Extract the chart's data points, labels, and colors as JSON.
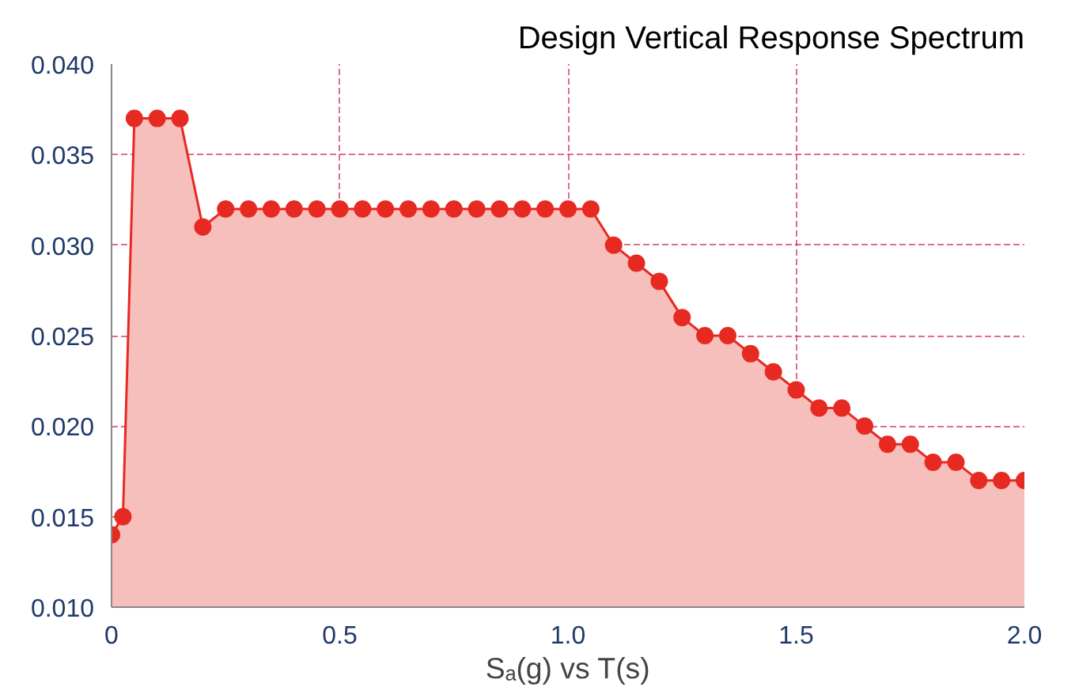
{
  "chart_data": {
    "type": "area",
    "title": "Design Vertical Response Spectrum",
    "xlabel": "Sₐ(g) vs T(s)",
    "x": [
      0,
      0.025,
      0.05,
      0.1,
      0.15,
      0.2,
      0.25,
      0.3,
      0.35,
      0.4,
      0.45,
      0.5,
      0.55,
      0.6,
      0.65,
      0.7,
      0.75,
      0.8,
      0.85,
      0.9,
      0.95,
      1.0,
      1.05,
      1.1,
      1.15,
      1.2,
      1.25,
      1.3,
      1.35,
      1.4,
      1.45,
      1.5,
      1.55,
      1.6,
      1.65,
      1.7,
      1.75,
      1.8,
      1.85,
      1.9,
      1.95,
      2.0
    ],
    "series": [
      {
        "color": "#e62a22",
        "values": [
          0.014,
          0.015,
          0.037,
          0.037,
          0.037,
          0.031,
          0.032,
          0.032,
          0.032,
          0.032,
          0.032,
          0.032,
          0.032,
          0.032,
          0.032,
          0.032,
          0.032,
          0.032,
          0.032,
          0.032,
          0.032,
          0.032,
          0.032,
          0.03,
          0.029,
          0.028,
          0.026,
          0.025,
          0.025,
          0.024,
          0.023,
          0.022,
          0.021,
          0.021,
          0.02,
          0.019,
          0.019,
          0.018,
          0.018,
          0.017,
          0.017,
          0.017
        ]
      }
    ],
    "xlim": [
      0,
      2.0
    ],
    "ylim": [
      0.01,
      0.04
    ],
    "xticks": [
      0,
      0.5,
      {
        "value": 1.0,
        "label": "1.0"
      },
      1.5,
      {
        "value": 2.0,
        "label": "2.0"
      }
    ],
    "yticks": [
      {
        "value": 0.01,
        "label": "0.010"
      },
      {
        "value": 0.015,
        "label": "0.015"
      },
      {
        "value": 0.02,
        "label": "0.020"
      },
      {
        "value": 0.025,
        "label": "0.025"
      },
      {
        "value": 0.03,
        "label": "0.030"
      },
      {
        "value": 0.035,
        "label": "0.035"
      },
      {
        "value": 0.04,
        "label": "0.040"
      }
    ],
    "grid": true,
    "marker": "circle"
  }
}
